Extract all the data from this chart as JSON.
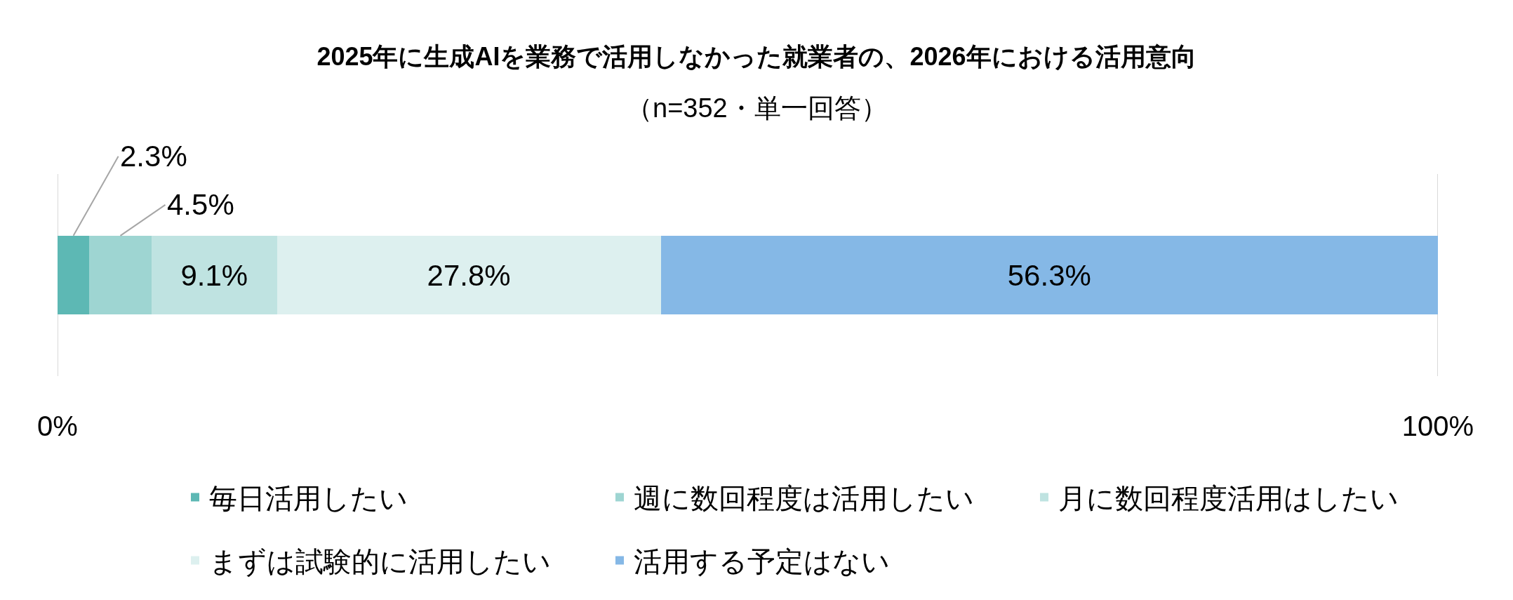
{
  "chart_data": {
    "type": "bar",
    "title": "2025年に生成AIを業務で活用しなかった就業者の、2026年における活用意向",
    "subtitle": "（n=352・単一回答）",
    "categories": [
      null
    ],
    "orientation": "horizontal",
    "stacked": true,
    "series": [
      {
        "name": "毎日活用したい",
        "color": "#5db8b4",
        "values": [
          2.3
        ],
        "value_labels": [
          "2.3%"
        ]
      },
      {
        "name": "週に数回程度は活用したい",
        "color": "#9ed5d2",
        "values": [
          4.5
        ],
        "value_labels": [
          "4.5%"
        ]
      },
      {
        "name": "月に数回程度活用はしたい",
        "color": "#bfe3e1",
        "values": [
          9.1
        ],
        "value_labels": [
          "9.1%"
        ]
      },
      {
        "name": "まずは試験的に活用したい",
        "color": "#ddf0ef",
        "values": [
          27.8
        ],
        "value_labels": [
          "27.8%"
        ]
      },
      {
        "name": "活用する予定はない",
        "color": "#85b8e6",
        "values": [
          56.3
        ],
        "value_labels": [
          "56.3%"
        ]
      }
    ],
    "xlim": [
      0,
      100
    ],
    "xticks": [
      {
        "value": 0,
        "label": "0%"
      },
      {
        "value": 100,
        "label": "100%"
      }
    ],
    "grid": "x",
    "legend": "bottom",
    "tick_labels": "x"
  }
}
